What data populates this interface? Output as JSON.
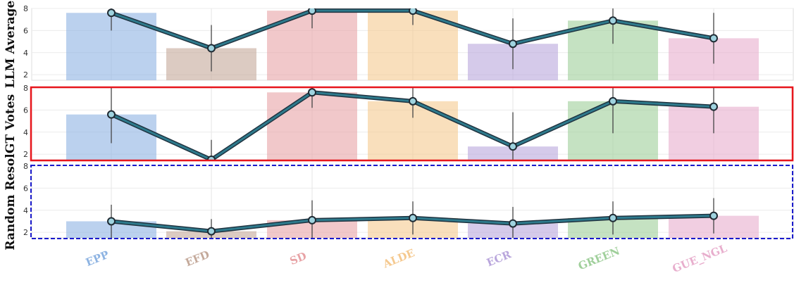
{
  "chart_data": {
    "type": "bar",
    "categories": [
      "EPP",
      "EFD",
      "SD",
      "ALDE",
      "ECR",
      "GREEN",
      "GUE_NGL"
    ],
    "category_colors": [
      "#8db3e2",
      "#c4a99a",
      "#e8a3a6",
      "#f5c98f",
      "#b9a6dc",
      "#9fcf9a",
      "#e8aecd"
    ],
    "line_color": "#2e7a8c",
    "marker_face_color": "#9fd3df",
    "panels": [
      {
        "ylabel": "LLM Average",
        "ylim": [
          1.5,
          8
        ],
        "yticks": [
          2,
          4,
          6,
          8
        ],
        "values": [
          7.6,
          4.4,
          7.8,
          7.8,
          4.8,
          6.9,
          5.3
        ],
        "errors": [
          1.6,
          2.1,
          1.6,
          1.3,
          2.3,
          2.1,
          2.3
        ],
        "highlight": "none"
      },
      {
        "ylabel": "GT Votes",
        "ylim": [
          1.5,
          8
        ],
        "yticks": [
          2,
          4,
          6,
          8
        ],
        "values": [
          5.6,
          1.5,
          7.6,
          6.8,
          2.7,
          6.8,
          6.3
        ],
        "errors": [
          2.6,
          1.8,
          1.4,
          1.5,
          3.1,
          2.9,
          2.4
        ],
        "highlight": "solid-red"
      },
      {
        "ylabel": "Random Resol",
        "ylim": [
          1.5,
          8
        ],
        "yticks": [
          2,
          4,
          6,
          8
        ],
        "values": [
          3.0,
          2.1,
          3.1,
          3.3,
          2.8,
          3.3,
          3.5
        ],
        "errors": [
          1.5,
          1.1,
          1.8,
          1.5,
          1.5,
          1.5,
          1.6
        ],
        "highlight": "dashed-blue"
      }
    ],
    "grid": true
  }
}
